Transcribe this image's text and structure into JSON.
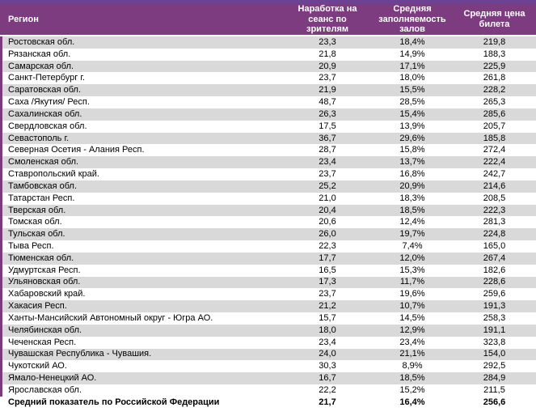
{
  "colors": {
    "top_strip": "#6c4394",
    "header_background": "#7d3c80",
    "header_text": "#ffffff",
    "stripe_row": "#d9d9d9",
    "accent_border": "#7a3a7d",
    "body_text": "#000000"
  },
  "table": {
    "columns": [
      "Регион",
      "Наработка на сеанс по зрителям",
      "Средняя заполняемость залов",
      "Средняя цена билета"
    ],
    "rows": [
      [
        "Ростовская обл.",
        "23,3",
        "18,4%",
        "219,8"
      ],
      [
        "Рязанская обл.",
        "21,8",
        "14,9%",
        "188,3"
      ],
      [
        "Самарская обл.",
        "20,9",
        "17,1%",
        "225,9"
      ],
      [
        "Санкт-Петербург г.",
        "23,7",
        "18,0%",
        "261,8"
      ],
      [
        "Саратовская обл.",
        "21,9",
        "15,5%",
        "228,2"
      ],
      [
        "Саха /Якутия/ Респ.",
        "48,7",
        "28,5%",
        "265,3"
      ],
      [
        "Сахалинская обл.",
        "26,3",
        "15,4%",
        "285,6"
      ],
      [
        "Свердловская обл.",
        "17,5",
        "13,9%",
        "205,7"
      ],
      [
        "Севастополь г.",
        "36,7",
        "29,6%",
        "185,8"
      ],
      [
        "Северная Осетия - Алания Респ.",
        "28,7",
        "15,8%",
        "272,4"
      ],
      [
        "Смоленская обл.",
        "23,4",
        "13,7%",
        "222,4"
      ],
      [
        "Ставропольский край.",
        "23,7",
        "16,8%",
        "242,7"
      ],
      [
        "Тамбовская обл.",
        "25,2",
        "20,9%",
        "214,6"
      ],
      [
        "Татарстан Респ.",
        "21,0",
        "18,3%",
        "208,5"
      ],
      [
        "Тверская обл.",
        "20,4",
        "18,5%",
        "222,3"
      ],
      [
        "Томская обл.",
        "20,6",
        "12,4%",
        "281,3"
      ],
      [
        "Тульская обл.",
        "26,0",
        "19,7%",
        "224,8"
      ],
      [
        "Тыва Респ.",
        "22,3",
        "7,4%",
        "165,0"
      ],
      [
        "Тюменская обл.",
        "17,7",
        "12,0%",
        "267,4"
      ],
      [
        "Удмуртская Респ.",
        "16,5",
        "15,3%",
        "182,6"
      ],
      [
        "Ульяновская обл.",
        "17,3",
        "11,7%",
        "228,6"
      ],
      [
        "Хабаровский край.",
        "23,7",
        "19,6%",
        "259,6"
      ],
      [
        "Хакасия Респ.",
        "21,2",
        "10,7%",
        "191,3"
      ],
      [
        "Ханты-Мансийский Автономный округ - Югра АО.",
        "15,7",
        "14,5%",
        "258,3"
      ],
      [
        "Челябинская обл.",
        "18,0",
        "12,9%",
        "191,1"
      ],
      [
        "Чеченская Респ.",
        "23,4",
        "23,4%",
        "323,8"
      ],
      [
        "Чувашская Республика - Чувашия.",
        "24,0",
        "21,1%",
        "154,0"
      ],
      [
        "Чукотский АО.",
        "30,3",
        "8,9%",
        "292,5"
      ],
      [
        "Ямало-Ненецкий АО.",
        "16,7",
        "18,5%",
        "284,9"
      ],
      [
        "Ярославская обл.",
        "22,2",
        "15,2%",
        "211,5"
      ]
    ],
    "total": {
      "label": "Средний показатель по Российской Федерации",
      "sessions": "21,7",
      "occupancy": "16,4%",
      "price": "256,6"
    }
  }
}
